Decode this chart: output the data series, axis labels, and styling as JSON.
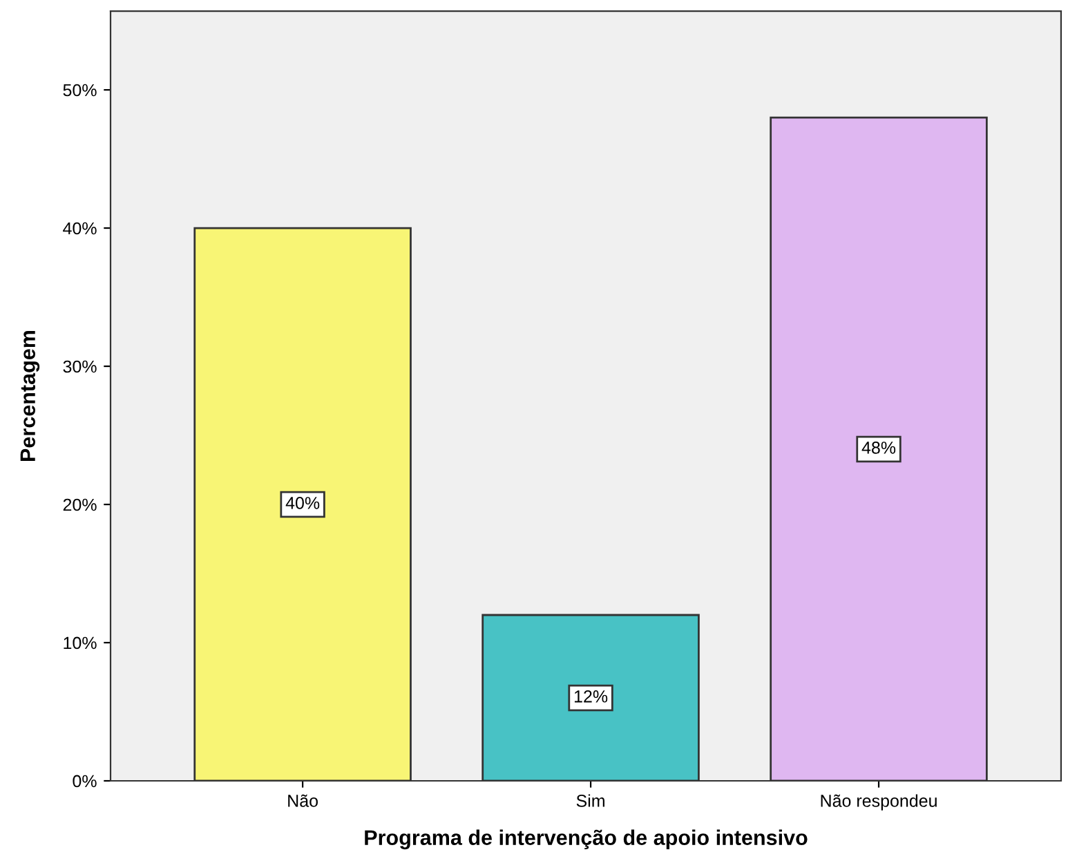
{
  "chart_data": {
    "type": "bar",
    "xlabel": "Programa de intervenção de apoio intensivo",
    "ylabel": "Percentagem",
    "categories": [
      "Não",
      "Sim",
      "Não respondeu"
    ],
    "values": [
      40,
      12,
      48
    ],
    "colors": [
      "#f8f575",
      "#48c2c5",
      "#dfb7f1"
    ],
    "value_labels": [
      "40%",
      "12%",
      "48%"
    ],
    "ylim": [
      0,
      55.7
    ],
    "yticks": [
      {
        "value": 0,
        "label": "0%"
      },
      {
        "value": 10,
        "label": "10%"
      },
      {
        "value": 20,
        "label": "20%"
      },
      {
        "value": 30,
        "label": "30%"
      },
      {
        "value": 40,
        "label": "40%"
      },
      {
        "value": 50,
        "label": "50%"
      }
    ],
    "grid": false
  }
}
